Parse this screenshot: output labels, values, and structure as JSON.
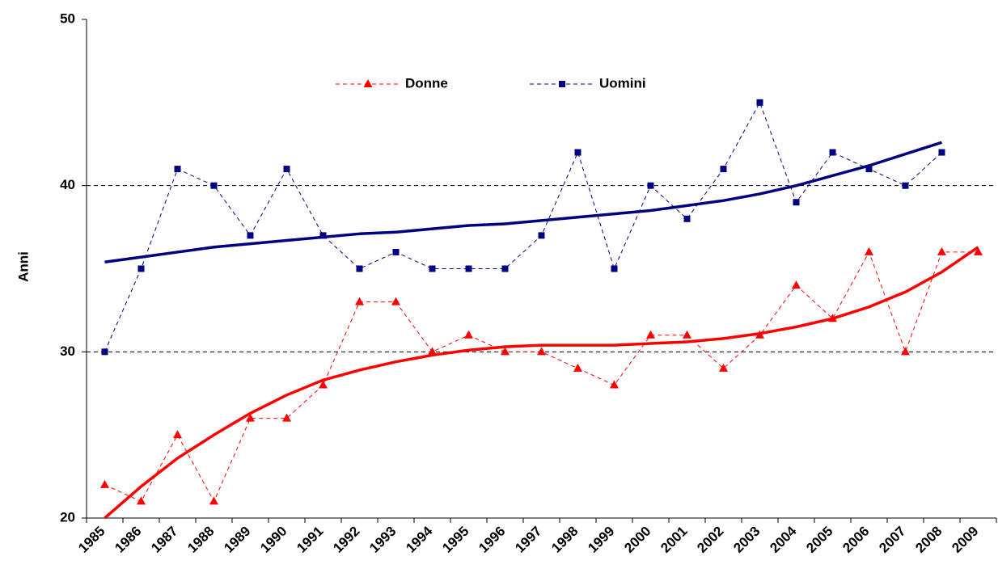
{
  "chart_data": {
    "type": "line",
    "y_label": "Anni",
    "categories": [
      "1985",
      "1986",
      "1987",
      "1988",
      "1989",
      "1990",
      "1991",
      "1992",
      "1993",
      "1994",
      "1995",
      "1996",
      "1997",
      "1998",
      "1999",
      "2000",
      "2001",
      "2002",
      "2003",
      "2004",
      "2005",
      "2006",
      "2007",
      "2008",
      "2009"
    ],
    "series": [
      {
        "name": "Donne",
        "color": "#ff0000",
        "marker": "triangle",
        "values": [
          22,
          21,
          25,
          21,
          26,
          26,
          28,
          33,
          33,
          30,
          31,
          30,
          30,
          29,
          28,
          31,
          31,
          29,
          31,
          34,
          32,
          36,
          30,
          36,
          36
        ]
      },
      {
        "name": "Uomini",
        "color": "#000080",
        "marker": "square",
        "values": [
          30,
          35,
          41,
          40,
          37,
          41,
          37,
          35,
          36,
          35,
          35,
          35,
          37,
          42,
          35,
          40,
          38,
          41,
          45,
          39,
          42,
          41,
          40,
          42,
          null
        ]
      }
    ],
    "trendlines": [
      {
        "color": "#ff0000",
        "values": [
          20,
          21.9,
          23.6,
          25.0,
          26.3,
          27.4,
          28.3,
          28.9,
          29.4,
          29.8,
          30.1,
          30.3,
          30.4,
          30.4,
          30.4,
          30.5,
          30.6,
          30.8,
          31.1,
          31.5,
          32.0,
          32.7,
          33.6,
          34.8,
          36.3
        ]
      },
      {
        "color": "#000080",
        "values": [
          35.4,
          35.7,
          36.0,
          36.3,
          36.5,
          36.7,
          36.9,
          37.1,
          37.2,
          37.4,
          37.6,
          37.7,
          37.9,
          38.1,
          38.3,
          38.5,
          38.8,
          39.1,
          39.5,
          40.0,
          40.6,
          41.2,
          41.9,
          42.6,
          null
        ]
      }
    ],
    "ylim": [
      20,
      50
    ],
    "yticks": [
      20,
      30,
      40,
      50
    ],
    "grid": true,
    "legend": "top"
  }
}
